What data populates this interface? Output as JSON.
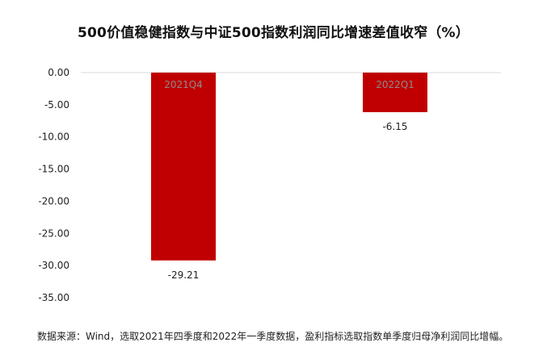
{
  "chart_data": {
    "type": "bar",
    "title": "500价值稳健指数与中证500指数利润同比增速差值收窄（%）",
    "categories": [
      "2021Q4",
      "2022Q1"
    ],
    "values": [
      -29.21,
      -6.15
    ],
    "value_labels": [
      "-29.21",
      "-6.15"
    ],
    "yticks": [
      "0.00",
      "-5.00",
      "-10.00",
      "-15.00",
      "-20.00",
      "-25.00",
      "-30.00",
      "-35.00"
    ],
    "ylim": [
      -35,
      0
    ],
    "xlabel": "",
    "ylabel": "",
    "grid": false,
    "bar_color": "#c00000",
    "category_label_color": "#8b8b8b"
  },
  "footnote": "数据来源：Wind，选取2021年四季度和2022年一季度数据，盈利指标选取指数单季度归母净利润同比增幅。"
}
